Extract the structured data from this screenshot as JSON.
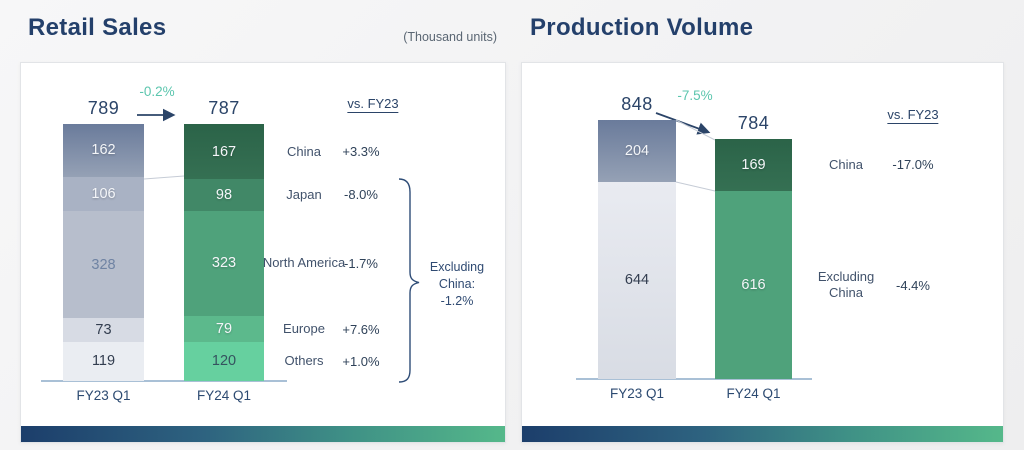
{
  "palette": {
    "navy": "#2b4468",
    "title_navy": "#24406b",
    "teal_change": "#5cc6ae",
    "note_grey": "#5a6673",
    "axis": "#a9c0d6",
    "connector": "#c6ccd6",
    "strip_gradient_start": "#1c3e6b",
    "strip_gradient_end": "#55b88a",
    "card_background": "#ffffff"
  },
  "chart_data": [
    {
      "type": "bar",
      "variant": "stacked-comparison",
      "title": "Retail Sales",
      "unit_note": "(Thousand units)",
      "categories": [
        "FY23 Q1",
        "FY24 Q1"
      ],
      "totals": [
        789,
        787
      ],
      "total_change": "-0.2%",
      "vs_header": "vs. FY23",
      "series": [
        {
          "name": "China",
          "values": [
            162,
            167
          ],
          "change": "+3.3%"
        },
        {
          "name": "Japan",
          "values": [
            106,
            98
          ],
          "change": "-8.0%"
        },
        {
          "name": "North America",
          "values": [
            328,
            323
          ],
          "change": "-1.7%"
        },
        {
          "name": "Europe",
          "values": [
            73,
            79
          ],
          "change": "+7.6%"
        },
        {
          "name": "Others",
          "values": [
            119,
            120
          ],
          "change": "+1.0%"
        }
      ],
      "annotation": {
        "label": "Excluding China:",
        "value": "-1.2%",
        "applies_to": [
          "Japan",
          "North America",
          "Europe",
          "Others"
        ]
      },
      "bar_styles": [
        [
          {
            "bg": "linear-gradient(180deg,#6a7b9b,#95a1b5)",
            "text": "#f4f6f9"
          },
          {
            "bg": "#a9b2c4",
            "text": "#f4f6f9"
          },
          {
            "bg": "#b7becc",
            "text": "#6f83a3"
          },
          {
            "bg": "#d7dbe4",
            "text": "#323d4f"
          },
          {
            "bg": "#eaedf2",
            "text": "#323d4f"
          }
        ],
        [
          {
            "bg": "linear-gradient(180deg,#2b6348,#357053)",
            "text": "#f4f6f9"
          },
          {
            "bg": "#418867",
            "text": "#f4f6f9"
          },
          {
            "bg": "#4fa27b",
            "text": "#f4f6f9"
          },
          {
            "bg": "#5cb98c",
            "text": "#f4f6f9"
          },
          {
            "bg": "#66d09f",
            "text": "#35525f"
          }
        ]
      ]
    },
    {
      "type": "bar",
      "variant": "stacked-comparison",
      "title": "Production Volume",
      "categories": [
        "FY23 Q1",
        "FY24 Q1"
      ],
      "totals": [
        848,
        784
      ],
      "total_change": "-7.5%",
      "vs_header": "vs. FY23",
      "series": [
        {
          "name": "China",
          "values": [
            204,
            169
          ],
          "change": "-17.0%"
        },
        {
          "name": "Excluding China",
          "values": [
            644,
            616
          ],
          "change": "-4.4%"
        }
      ],
      "bar_styles": [
        [
          {
            "bg": "linear-gradient(180deg,#6a7b9b,#95a1b5)",
            "text": "#f4f6f9"
          },
          {
            "bg": "linear-gradient(180deg,#e9ebf1,#d8dce4)",
            "text": "#323d4f"
          }
        ],
        [
          {
            "bg": "linear-gradient(180deg,#2b6348,#357053)",
            "text": "#f4f6f9"
          },
          {
            "bg": "#4fa27b",
            "text": "#f4f6f9"
          }
        ]
      ]
    }
  ]
}
